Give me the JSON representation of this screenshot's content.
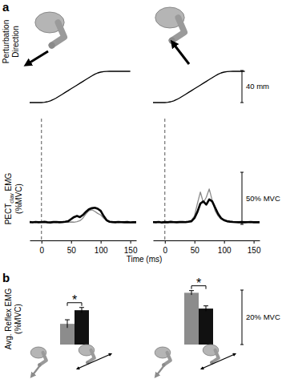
{
  "chart_data": [
    {
      "type": "line",
      "panel_label": "a",
      "x": [
        -20,
        -15,
        -10,
        -5,
        0,
        5,
        10,
        15,
        20,
        25,
        30,
        35,
        40,
        45,
        50,
        55,
        60,
        65,
        70,
        75,
        80,
        85,
        90,
        95,
        100,
        105,
        110,
        115,
        120,
        125,
        130,
        135,
        140,
        145,
        150,
        155,
        160
      ],
      "xlim": [
        -20,
        160
      ],
      "xticks": [
        0,
        50,
        100,
        150
      ],
      "xlabel": "Time (ms)",
      "ylabel": [
        "Perturbation",
        "Direction"
      ],
      "ylim": [
        0,
        40
      ],
      "y_scale_bar": {
        "value": 40,
        "label": "40 mm"
      },
      "y2label": [
        "PECT",
        "clav",
        " EMG",
        "(%MVC)"
      ],
      "y2lim": [
        0,
        50
      ],
      "y2_scale_bar": {
        "value": 50,
        "label": "50% MVC"
      },
      "vline_x": 0,
      "tick_labels": "x",
      "subplots": [
        {
          "series": [
            {
              "axis": "y",
              "color": "#000000",
              "values": [
                0,
                0,
                0,
                0,
                0,
                0.3,
                1,
                2.2,
                3.8,
                5.8,
                8,
                10.3,
                12.6,
                14.9,
                17.2,
                19.5,
                21.8,
                24.1,
                26.4,
                28.7,
                31,
                33.3,
                35.4,
                37,
                38,
                38.6,
                38.9,
                39,
                39,
                39,
                39,
                39,
                39,
                39,
                39,
                null,
                null
              ]
            },
            {
              "axis": "y2",
              "color": "#8c8c8c",
              "values": [
                2,
                2.5,
                1.8,
                2.2,
                2,
                2.4,
                1.9,
                2.1,
                2.3,
                1.8,
                2.2,
                2,
                2.4,
                2,
                2.3,
                2.1,
                2.6,
                3.5,
                6,
                10,
                13,
                14,
                12.5,
                10.5,
                9,
                6,
                3.5,
                2.4,
                2,
                2.3,
                1.9,
                2.2,
                2,
                2.3,
                1.9,
                2.1,
                2
              ]
            },
            {
              "axis": "y2",
              "color": "#000000",
              "values": [
                2.2,
                1.9,
                2.3,
                2,
                2.1,
                2.4,
                2,
                1.8,
                2.2,
                2.3,
                2,
                2.1,
                2.5,
                3,
                5,
                7,
                8,
                7,
                9,
                12,
                14.5,
                15.5,
                16,
                15,
                13,
                8,
                4,
                2.5,
                2.2,
                2,
                2.3,
                2.1,
                2,
                2.2,
                1.9,
                2.1,
                2
              ]
            }
          ]
        },
        {
          "series": [
            {
              "axis": "y",
              "color": "#000000",
              "values": [
                0,
                0,
                0,
                0,
                0,
                0.3,
                1,
                2.2,
                3.8,
                5.8,
                8,
                10.3,
                12.6,
                14.9,
                17.2,
                19.5,
                21.8,
                24.1,
                26.4,
                28.7,
                31,
                33.3,
                35.4,
                37,
                38,
                38.6,
                38.9,
                39,
                39,
                39,
                39,
                39,
                null,
                null,
                null,
                null,
                null
              ]
            },
            {
              "axis": "y2",
              "color": "#8c8c8c",
              "values": [
                2,
                2.3,
                1.9,
                2.2,
                2,
                2.5,
                2.1,
                2,
                2.3,
                2.4,
                2.1,
                2.6,
                3,
                4,
                8,
                20,
                31,
                21,
                26,
                34,
                23,
                13,
                8,
                5,
                3.5,
                3,
                2.5,
                2.2,
                2,
                2.3,
                2.1,
                2,
                2.2,
                1.9,
                2.1,
                2,
                2.2
              ]
            },
            {
              "axis": "y2",
              "color": "#000000",
              "values": [
                2.1,
                2,
                2.3,
                1.8,
                2.2,
                2,
                2.4,
                2.1,
                2,
                2.2,
                2.3,
                2.1,
                2.5,
                3,
                6,
                12,
                20,
                22,
                19,
                24,
                22,
                16,
                10,
                6,
                4,
                3,
                2.6,
                2.3,
                2.1,
                2,
                2.2,
                2,
                2.1,
                2.3,
                2,
                2.1,
                2
              ]
            }
          ]
        }
      ]
    },
    {
      "type": "bar",
      "panel_label": "b",
      "ylabel": [
        "Avg. Reflex EMG",
        "(%MVC)"
      ],
      "categories": [
        null,
        null,
        null,
        null
      ],
      "values": [
        7.6,
        12.6,
        19,
        13.2
      ],
      "errors": [
        1.5,
        1,
        0.8,
        1
      ],
      "colors": [
        "#8c8c8c",
        "#111111",
        "#8c8c8c",
        "#111111"
      ],
      "ylim": [
        0,
        20
      ],
      "y_scale_bar": {
        "value": 20,
        "label": "20% MVC"
      },
      "tick_labels": false,
      "significance": [
        {
          "between": [
            0,
            1
          ],
          "label": "*"
        },
        {
          "between": [
            2,
            3
          ],
          "label": "*"
        }
      ]
    }
  ]
}
